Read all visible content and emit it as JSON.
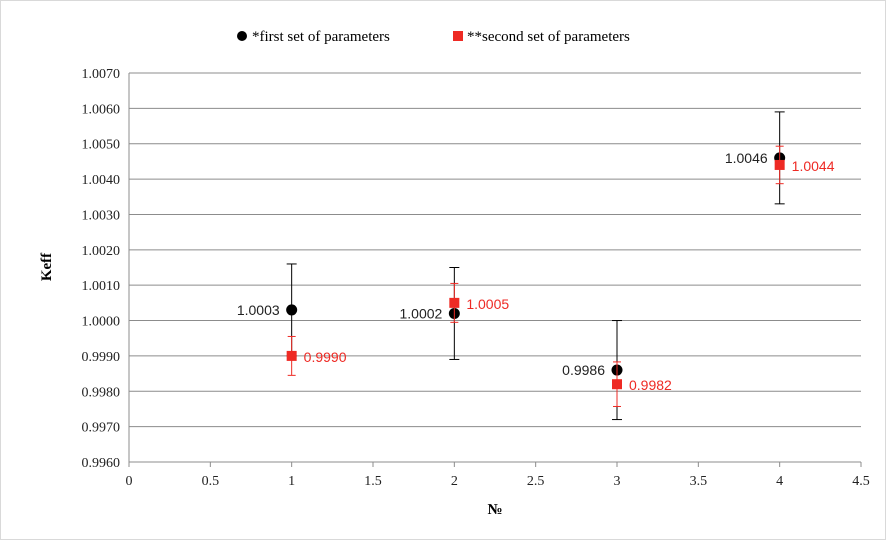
{
  "chart_data": {
    "type": "scatter",
    "xlabel": "№",
    "ylabel": "Keff",
    "xlim": [
      0,
      4.5
    ],
    "ylim": [
      0.996,
      1.007
    ],
    "x_ticks": [
      "0",
      "0.5",
      "1",
      "1.5",
      "2",
      "2.5",
      "3",
      "3.5",
      "4",
      "4.5"
    ],
    "y_ticks": [
      "0.9960",
      "0.9970",
      "0.9980",
      "0.9990",
      "1.0000",
      "1.0010",
      "1.0020",
      "1.0030",
      "1.0040",
      "1.0050",
      "1.0060",
      "1.0070"
    ],
    "grid": "horizontal",
    "legend_position": "top",
    "series": [
      {
        "name": "*first set of parameters",
        "marker": "circle",
        "color": "#000000",
        "x": [
          1,
          2,
          3,
          4
        ],
        "y": [
          1.0003,
          1.0002,
          0.9986,
          1.0046
        ],
        "error": [
          0.0013,
          0.0013,
          0.0014,
          0.0013
        ],
        "labels": [
          "1.0003",
          "1.0002",
          "0.9986",
          "1.0046"
        ],
        "label_side": "left"
      },
      {
        "name": "**second set of parameters",
        "marker": "square",
        "color": "#ee2a24",
        "x": [
          1,
          2,
          3,
          4
        ],
        "y": [
          0.999,
          1.0005,
          0.9982,
          1.0044
        ],
        "error": [
          0.00055,
          0.00055,
          0.00063,
          0.00053
        ],
        "labels": [
          "0.9990",
          "1.0005",
          "0.9982",
          "1.0044"
        ],
        "label_side": "right"
      }
    ]
  }
}
